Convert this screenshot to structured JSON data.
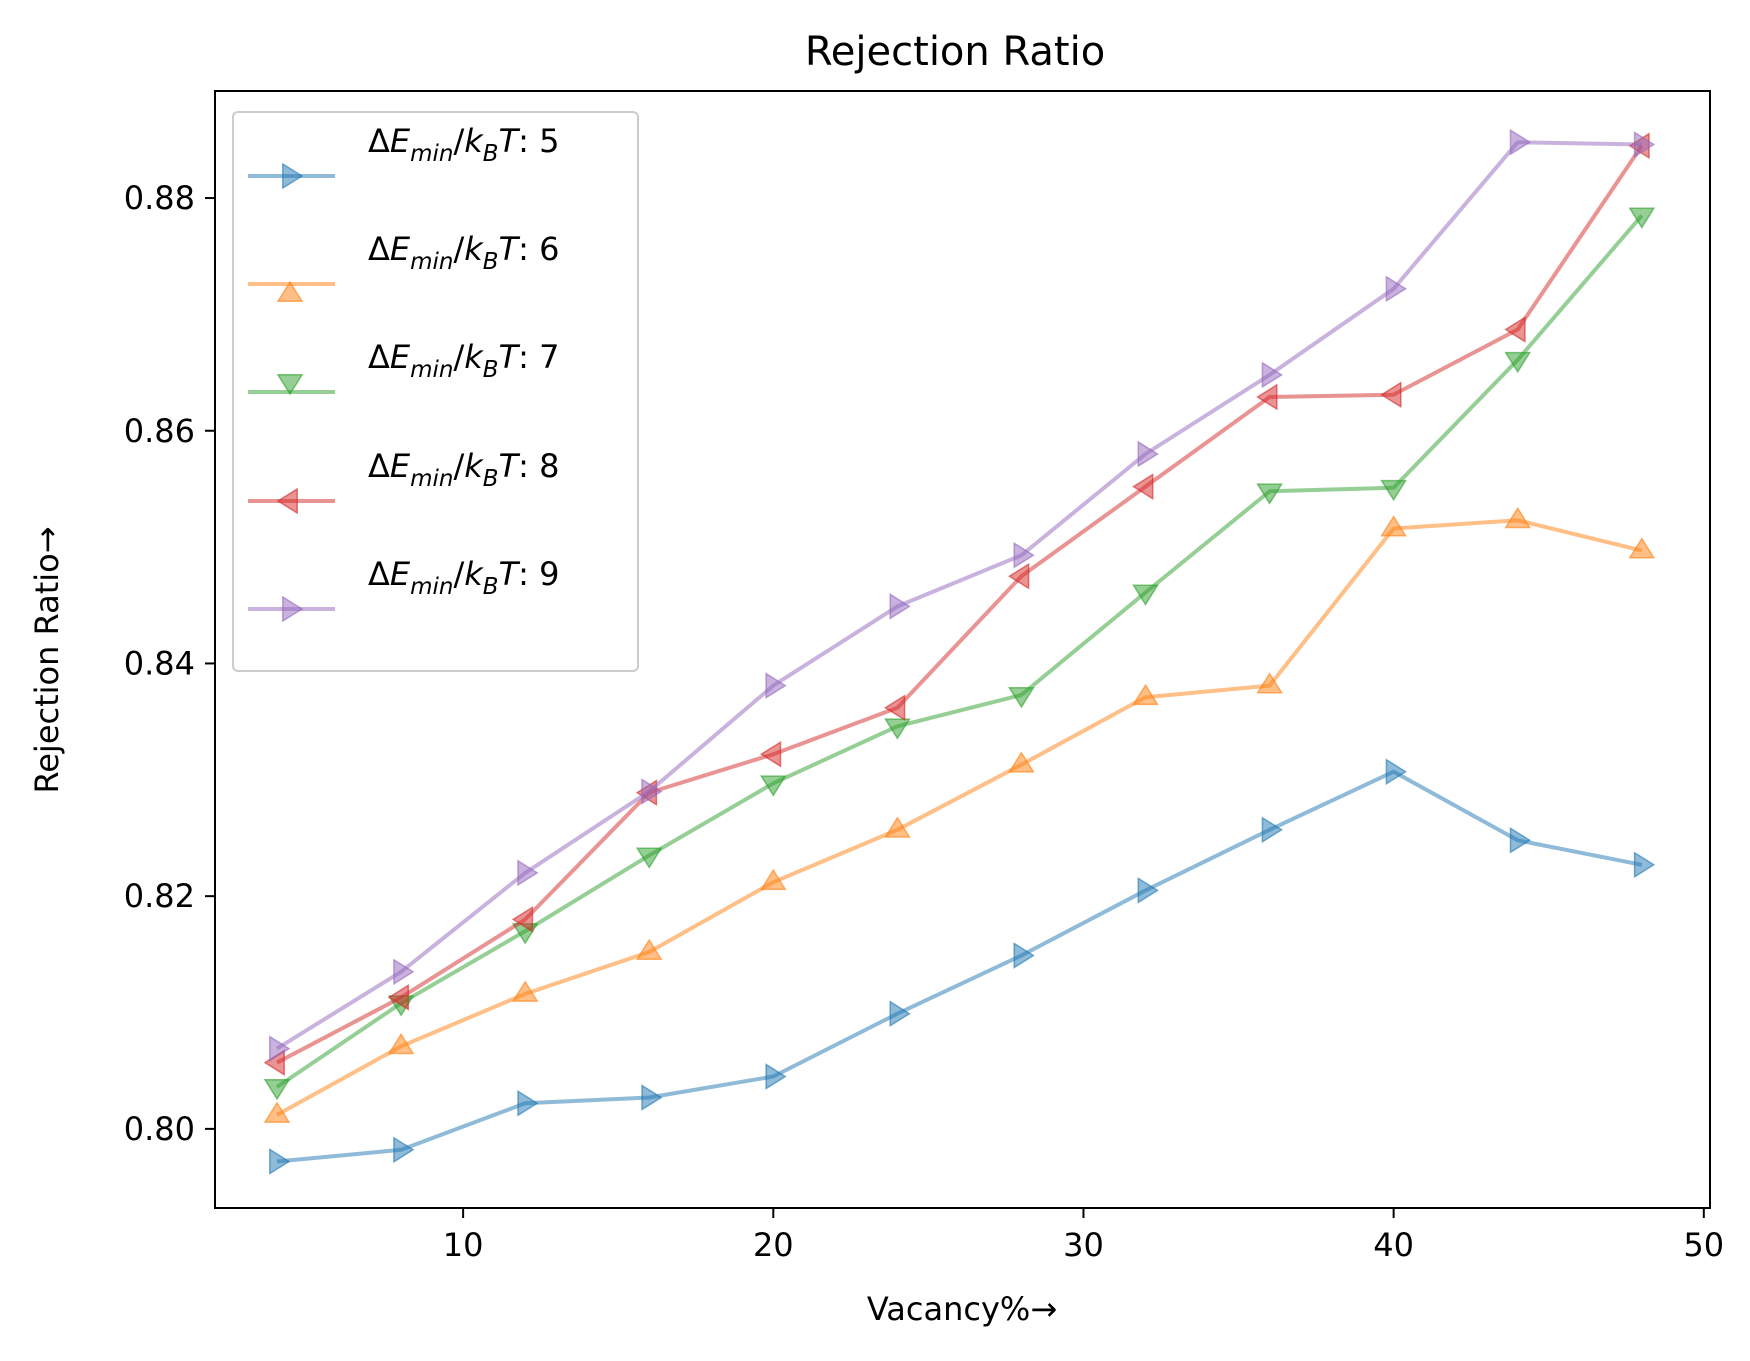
{
  "chart_data": {
    "type": "line",
    "title": "Rejection Ratio",
    "xlabel": "Vacancy%→",
    "ylabel": "Rejection Ratio→",
    "xlim": [
      2,
      50.2
    ],
    "ylim": [
      0.7932,
      0.8892
    ],
    "xticks": [
      10,
      20,
      30,
      40,
      50
    ],
    "yticks": [
      0.8,
      0.82,
      0.84,
      0.86,
      0.88
    ],
    "xtick_labels": [
      "10",
      "20",
      "30",
      "40",
      "50"
    ],
    "ytick_labels": [
      "0.80",
      "0.82",
      "0.84",
      "0.86",
      "0.88"
    ],
    "grid": false,
    "legend_position": "upper-left",
    "series": [
      {
        "name_prefix": "ΔE",
        "name_sub1": "min",
        "name_mid": "/k",
        "name_sub2": "B",
        "name_suffix": "T: 5",
        "color": "#1f77b4",
        "marker": "triangle-right",
        "x": [
          4,
          8,
          12,
          16,
          20,
          24,
          28,
          32,
          36,
          40,
          44,
          48
        ],
        "y": [
          0.7972,
          0.7982,
          0.8022,
          0.8027,
          0.8045,
          0.8099,
          0.8149,
          0.8205,
          0.8257,
          0.8307,
          0.8248,
          0.8227
        ]
      },
      {
        "name_prefix": "ΔE",
        "name_sub1": "min",
        "name_mid": "/k",
        "name_sub2": "B",
        "name_suffix": "T: 6",
        "color": "#ff7f0e",
        "marker": "triangle-up",
        "x": [
          4,
          8,
          12,
          16,
          20,
          24,
          28,
          32,
          36,
          40,
          44,
          48
        ],
        "y": [
          0.8012,
          0.8071,
          0.8116,
          0.8152,
          0.8212,
          0.8257,
          0.8313,
          0.8371,
          0.8381,
          0.8516,
          0.8523,
          0.8497
        ]
      },
      {
        "name_prefix": "ΔE",
        "name_sub1": "min",
        "name_mid": "/k",
        "name_sub2": "B",
        "name_suffix": "T: 7",
        "color": "#2ca02c",
        "marker": "triangle-down",
        "x": [
          4,
          8,
          12,
          16,
          20,
          24,
          28,
          32,
          36,
          40,
          44,
          48
        ],
        "y": [
          0.8036,
          0.8108,
          0.817,
          0.8235,
          0.8297,
          0.8346,
          0.8373,
          0.8461,
          0.8548,
          0.8551,
          0.8661,
          0.8785
        ]
      },
      {
        "name_prefix": "ΔE",
        "name_sub1": "min",
        "name_mid": "/k",
        "name_sub2": "B",
        "name_suffix": "T: 8",
        "color": "#d62728",
        "marker": "triangle-left",
        "x": [
          4,
          8,
          12,
          16,
          20,
          24,
          28,
          32,
          36,
          40,
          44,
          48
        ],
        "y": [
          0.8057,
          0.8113,
          0.818,
          0.8289,
          0.8322,
          0.8362,
          0.8475,
          0.8552,
          0.8629,
          0.8631,
          0.8687,
          0.8845
        ]
      },
      {
        "name_prefix": "ΔE",
        "name_sub1": "min",
        "name_mid": "/k",
        "name_sub2": "B",
        "name_suffix": "T: 9",
        "color": "#9467bd",
        "marker": "triangle-right",
        "x": [
          4,
          8,
          12,
          16,
          20,
          24,
          28,
          32,
          36,
          40,
          44,
          48
        ],
        "y": [
          0.8069,
          0.8135,
          0.822,
          0.829,
          0.8381,
          0.8449,
          0.8493,
          0.858,
          0.8648,
          0.8722,
          0.8848,
          0.8846
        ]
      }
    ]
  }
}
